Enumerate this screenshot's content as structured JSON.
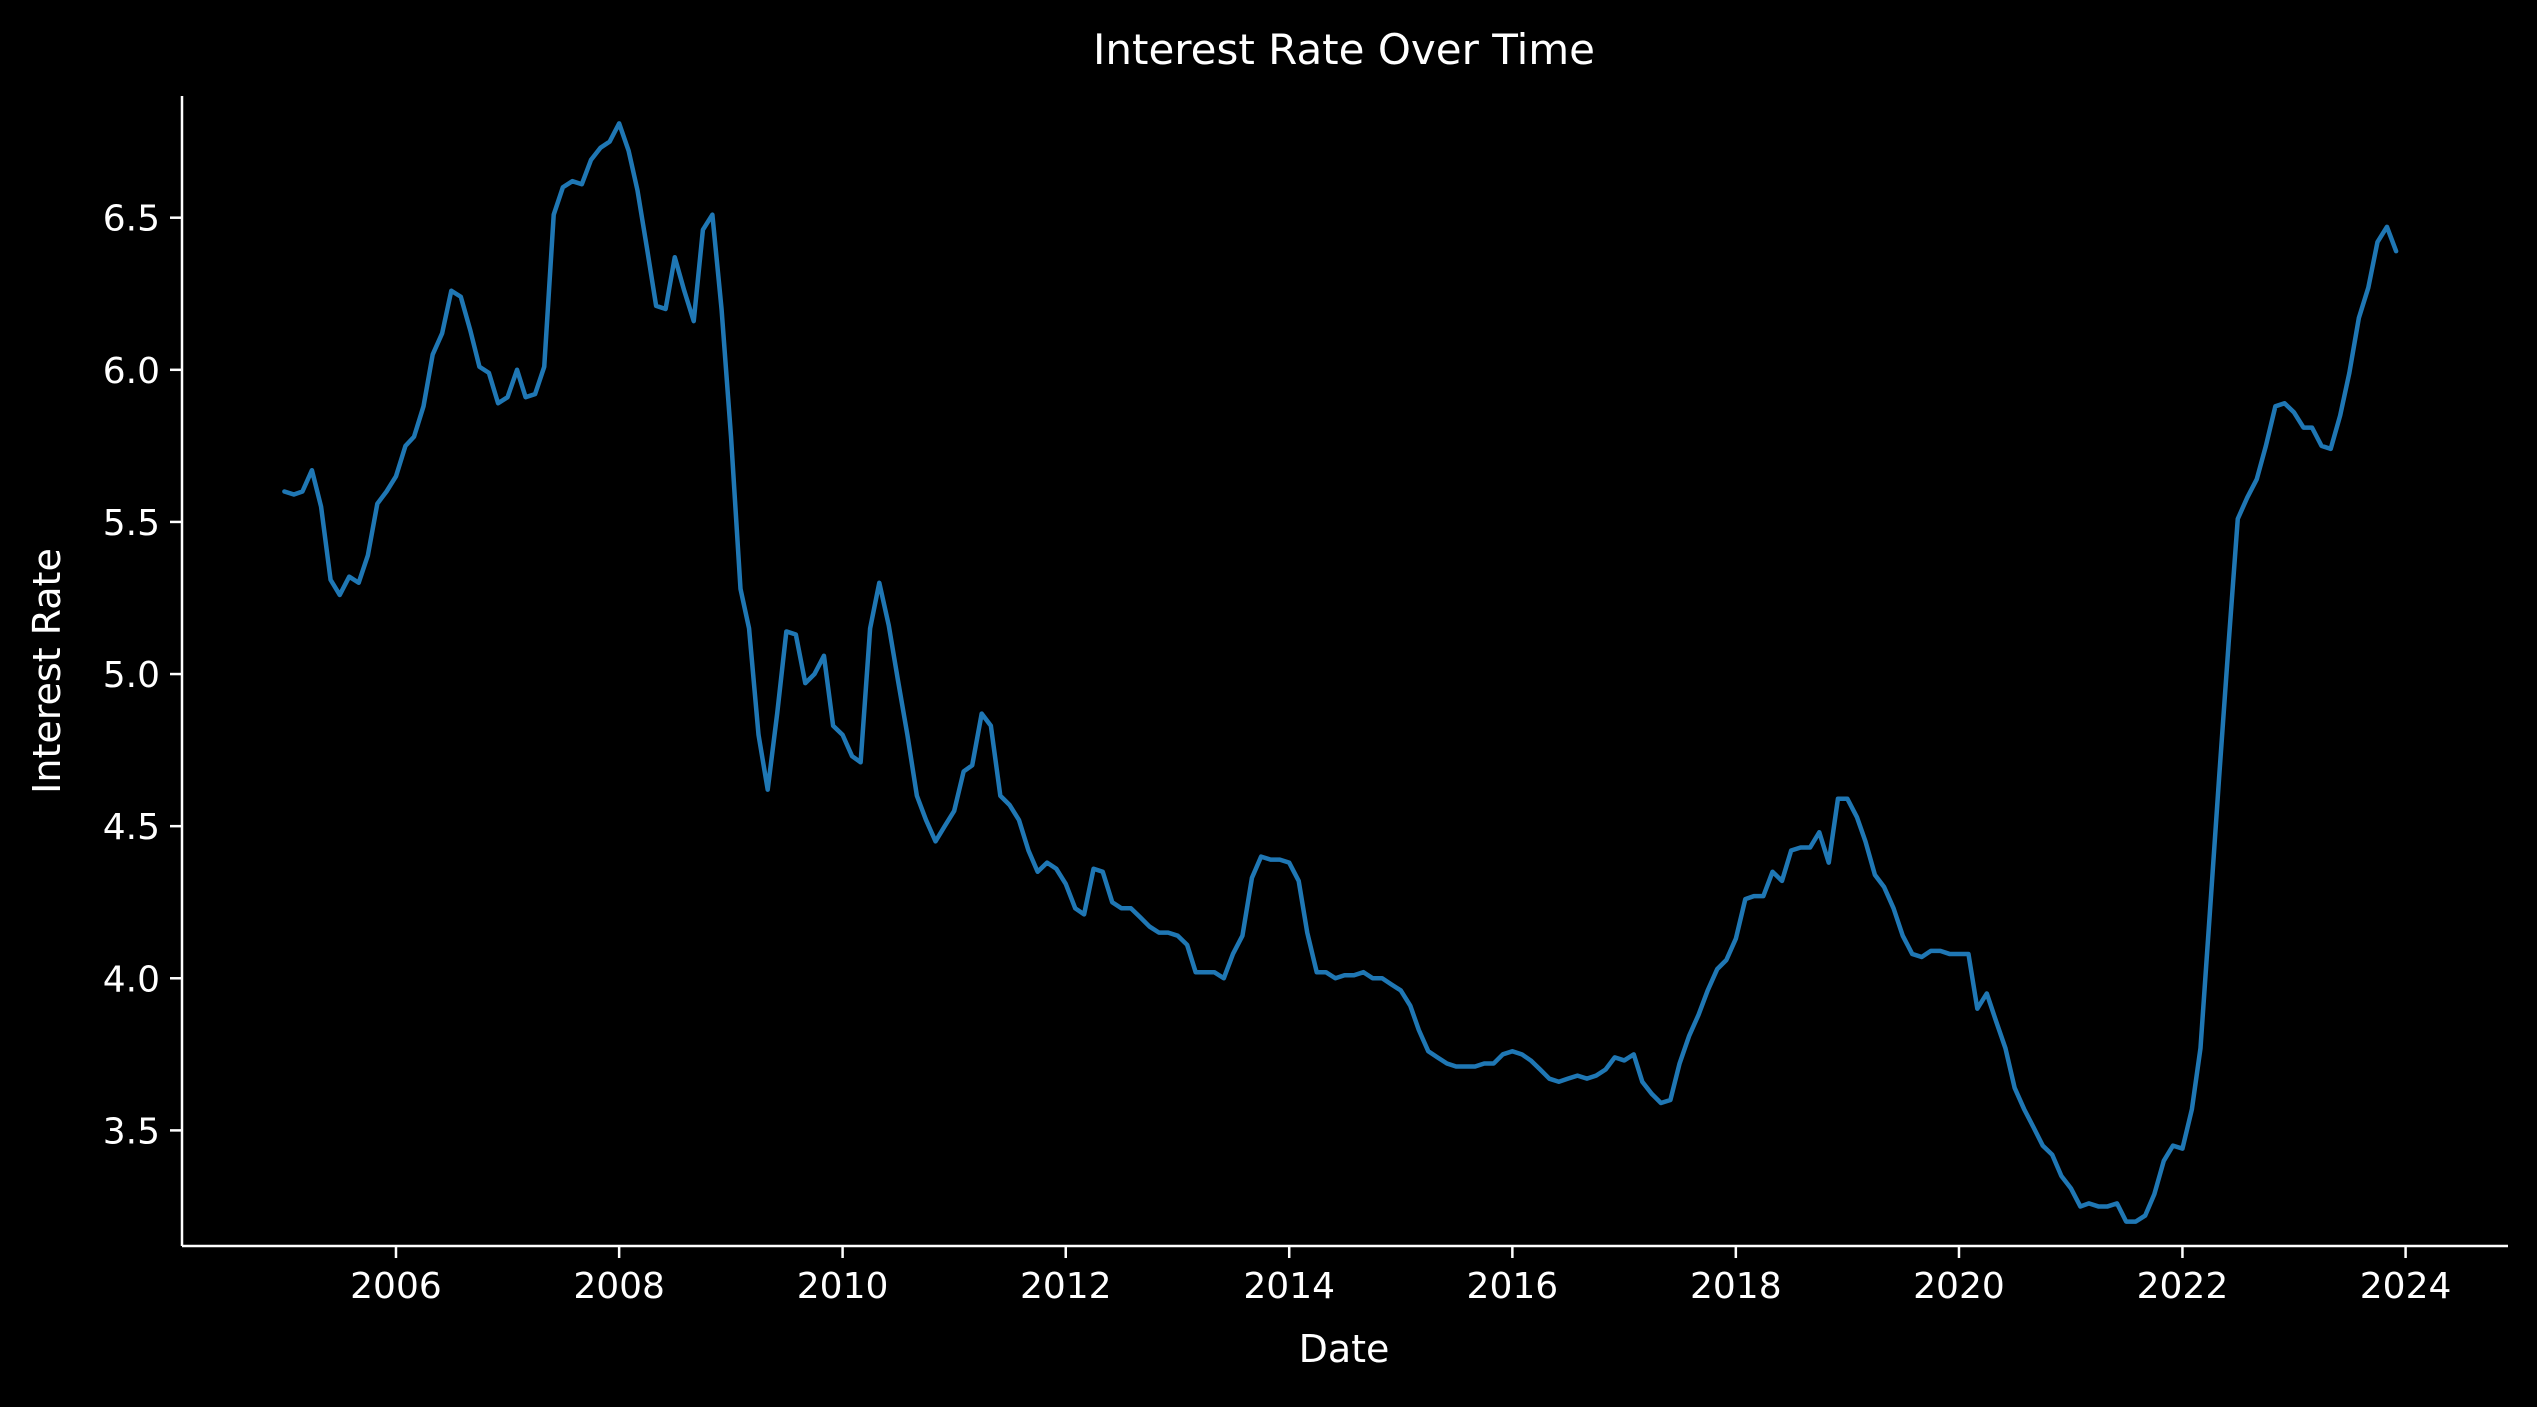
{
  "chart_data": {
    "type": "line",
    "title": "Interest Rate Over Time",
    "xlabel": "Date",
    "ylabel": "Interest Rate",
    "x_ticks": [
      "2006",
      "2008",
      "2010",
      "2012",
      "2014",
      "2016",
      "2018",
      "2020",
      "2022",
      "2024"
    ],
    "y_ticks": [
      "3.5",
      "4.0",
      "4.5",
      "5.0",
      "5.5",
      "6.0",
      "6.5"
    ],
    "xlim": [
      "2004-02-01",
      "2024-12-01"
    ],
    "ylim": [
      3.12,
      6.9
    ],
    "grid": false,
    "legend": "none",
    "colors": {
      "background": "#000000",
      "axis": "#ffffff",
      "text": "#ffffff",
      "line": "#1f77b4"
    },
    "series": [
      {
        "x": [
          "2005-01",
          "2005-02",
          "2005-03",
          "2005-04",
          "2005-05",
          "2005-06",
          "2005-07",
          "2005-08",
          "2005-09",
          "2005-10",
          "2005-11",
          "2005-12",
          "2006-01",
          "2006-02",
          "2006-03",
          "2006-04",
          "2006-05",
          "2006-06",
          "2006-07",
          "2006-08",
          "2006-09",
          "2006-10",
          "2006-11",
          "2006-12",
          "2007-01",
          "2007-02",
          "2007-03",
          "2007-04",
          "2007-05",
          "2007-06",
          "2007-07",
          "2007-08",
          "2007-09",
          "2007-10",
          "2007-11",
          "2007-12",
          "2008-01",
          "2008-02",
          "2008-03",
          "2008-04",
          "2008-05",
          "2008-06",
          "2008-07",
          "2008-08",
          "2008-09",
          "2008-10",
          "2008-11",
          "2008-12",
          "2009-01",
          "2009-02",
          "2009-03",
          "2009-04",
          "2009-05",
          "2009-06",
          "2009-07",
          "2009-08",
          "2009-09",
          "2009-10",
          "2009-11",
          "2009-12",
          "2010-01",
          "2010-02",
          "2010-03",
          "2010-04",
          "2010-05",
          "2010-06",
          "2010-07",
          "2010-08",
          "2010-09",
          "2010-10",
          "2010-11",
          "2010-12",
          "2011-01",
          "2011-02",
          "2011-03",
          "2011-04",
          "2011-05",
          "2011-06",
          "2011-07",
          "2011-08",
          "2011-09",
          "2011-10",
          "2011-11",
          "2011-12",
          "2012-01",
          "2012-02",
          "2012-03",
          "2012-04",
          "2012-05",
          "2012-06",
          "2012-07",
          "2012-08",
          "2012-09",
          "2012-10",
          "2012-11",
          "2012-12",
          "2013-01",
          "2013-02",
          "2013-03",
          "2013-04",
          "2013-05",
          "2013-06",
          "2013-07",
          "2013-08",
          "2013-09",
          "2013-10",
          "2013-11",
          "2013-12",
          "2014-01",
          "2014-02",
          "2014-03",
          "2014-04",
          "2014-05",
          "2014-06",
          "2014-07",
          "2014-08",
          "2014-09",
          "2014-10",
          "2014-11",
          "2014-12",
          "2015-01",
          "2015-02",
          "2015-03",
          "2015-04",
          "2015-05",
          "2015-06",
          "2015-07",
          "2015-08",
          "2015-09",
          "2015-10",
          "2015-11",
          "2015-12",
          "2016-01",
          "2016-02",
          "2016-03",
          "2016-04",
          "2016-05",
          "2016-06",
          "2016-07",
          "2016-08",
          "2016-09",
          "2016-10",
          "2016-11",
          "2016-12",
          "2017-01",
          "2017-02",
          "2017-03",
          "2017-04",
          "2017-05",
          "2017-06",
          "2017-07",
          "2017-08",
          "2017-09",
          "2017-10",
          "2017-11",
          "2017-12",
          "2018-01",
          "2018-02",
          "2018-03",
          "2018-04",
          "2018-05",
          "2018-06",
          "2018-07",
          "2018-08",
          "2018-09",
          "2018-10",
          "2018-11",
          "2018-12",
          "2019-01",
          "2019-02",
          "2019-03",
          "2019-04",
          "2019-05",
          "2019-06",
          "2019-07",
          "2019-08",
          "2019-09",
          "2019-10",
          "2019-11",
          "2019-12",
          "2020-01",
          "2020-02",
          "2020-03",
          "2020-04",
          "2020-05",
          "2020-06",
          "2020-07",
          "2020-08",
          "2020-09",
          "2020-10",
          "2020-11",
          "2020-12",
          "2021-01",
          "2021-02",
          "2021-03",
          "2021-04",
          "2021-05",
          "2021-06",
          "2021-07",
          "2021-08",
          "2021-09",
          "2021-10",
          "2021-11",
          "2021-12",
          "2022-01",
          "2022-02",
          "2022-03",
          "2022-04",
          "2022-05",
          "2022-06",
          "2022-07",
          "2022-08",
          "2022-09",
          "2022-10",
          "2022-11",
          "2022-12",
          "2023-01",
          "2023-02",
          "2023-03",
          "2023-04",
          "2023-05",
          "2023-06",
          "2023-07",
          "2023-08",
          "2023-09",
          "2023-10",
          "2023-11",
          "2023-12"
        ],
        "y": [
          5.6,
          5.59,
          5.6,
          5.67,
          5.55,
          5.31,
          5.26,
          5.32,
          5.3,
          5.39,
          5.56,
          5.6,
          5.65,
          5.75,
          5.78,
          5.88,
          6.05,
          6.12,
          6.26,
          6.24,
          6.13,
          6.01,
          5.99,
          5.89,
          5.91,
          6.0,
          5.91,
          5.92,
          6.01,
          6.51,
          6.6,
          6.62,
          6.61,
          6.69,
          6.73,
          6.75,
          6.81,
          6.72,
          6.59,
          6.4,
          6.21,
          6.2,
          6.37,
          6.26,
          6.16,
          6.46,
          6.51,
          6.2,
          5.78,
          5.28,
          5.15,
          4.8,
          4.62,
          4.87,
          5.14,
          5.13,
          4.97,
          5.0,
          5.06,
          4.83,
          4.8,
          4.73,
          4.71,
          5.15,
          5.3,
          5.16,
          4.98,
          4.8,
          4.6,
          4.52,
          4.45,
          4.5,
          4.55,
          4.68,
          4.7,
          4.87,
          4.83,
          4.6,
          4.57,
          4.52,
          4.42,
          4.35,
          4.38,
          4.36,
          4.31,
          4.23,
          4.21,
          4.36,
          4.35,
          4.25,
          4.23,
          4.23,
          4.2,
          4.17,
          4.15,
          4.15,
          4.14,
          4.11,
          4.02,
          4.02,
          4.02,
          4.0,
          4.08,
          4.14,
          4.33,
          4.4,
          4.39,
          4.39,
          4.38,
          4.32,
          4.15,
          4.02,
          4.02,
          4.0,
          4.01,
          4.01,
          4.02,
          4.0,
          4.0,
          3.98,
          3.96,
          3.91,
          3.83,
          3.76,
          3.74,
          3.72,
          3.71,
          3.71,
          3.71,
          3.72,
          3.72,
          3.75,
          3.76,
          3.75,
          3.73,
          3.7,
          3.67,
          3.66,
          3.67,
          3.68,
          3.67,
          3.68,
          3.7,
          3.74,
          3.73,
          3.75,
          3.66,
          3.62,
          3.59,
          3.6,
          3.72,
          3.81,
          3.88,
          3.96,
          4.03,
          4.06,
          4.13,
          4.26,
          4.27,
          4.27,
          4.35,
          4.32,
          4.42,
          4.43,
          4.43,
          4.48,
          4.38,
          4.59,
          4.59,
          4.53,
          4.45,
          4.34,
          4.3,
          4.23,
          4.14,
          4.08,
          4.07,
          4.09,
          4.09,
          4.08,
          4.08,
          4.08,
          3.9,
          3.95,
          3.86,
          3.77,
          3.64,
          3.57,
          3.51,
          3.45,
          3.42,
          3.35,
          3.31,
          3.25,
          3.26,
          3.25,
          3.25,
          3.26,
          3.2,
          3.2,
          3.22,
          3.29,
          3.4,
          3.45,
          3.44,
          3.57,
          3.77,
          4.22,
          4.66,
          5.1,
          5.51,
          5.58,
          5.64,
          5.75,
          5.88,
          5.89,
          5.86,
          5.81,
          5.81,
          5.75,
          5.74,
          5.85,
          5.99,
          6.17,
          6.27,
          6.42,
          6.47,
          6.39
        ]
      }
    ]
  }
}
